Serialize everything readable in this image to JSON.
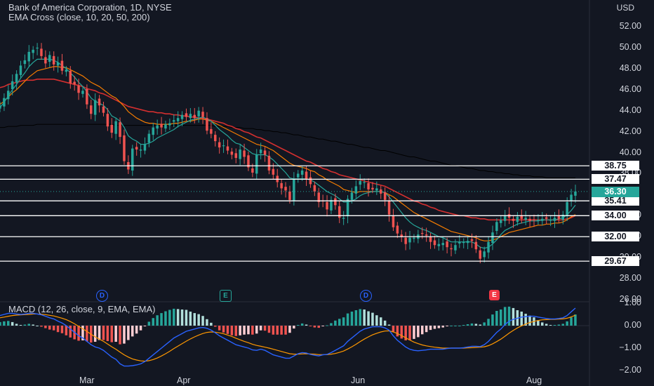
{
  "header": {
    "title": "Bank of America Corporation, 1D, NYSE",
    "indicator_ema": "EMA Cross (close, 10, 20, 50, 200)",
    "indicator_macd": "MACD (12, 26, close, 9, EMA, EMA)"
  },
  "axis": {
    "currency": "USD",
    "price_ticks": [
      "52.00",
      "50.00",
      "48.00",
      "46.00",
      "44.00",
      "42.00",
      "40.00",
      "38.00",
      "34.00",
      "32.00",
      "30.00",
      "28.00",
      "26.00"
    ],
    "macd_ticks": [
      "1.00",
      "0.00",
      "−1.00",
      "−2.00"
    ],
    "dates": [
      "Mar",
      "Apr",
      "Jun",
      "Aug"
    ]
  },
  "levels": [
    "38.75",
    "37.47",
    "35.41",
    "34.00",
    "32.00",
    "29.67"
  ],
  "last_price": "36.30",
  "events": [
    {
      "label": "D",
      "kind": "dividend"
    },
    {
      "label": "E",
      "kind": "earnings-green"
    },
    {
      "label": "D",
      "kind": "dividend"
    },
    {
      "label": "E",
      "kind": "earnings-red"
    }
  ],
  "colors": {
    "background": "#131722",
    "up": "#26a69a",
    "down": "#ef5350",
    "ema10": "#26a69a",
    "ema20": "#f57c00",
    "ema50": "#d32f2f",
    "ema200": "#000000",
    "macd": "#2962ff",
    "signal": "#ff9800"
  },
  "chart_data": {
    "type": "candlestick",
    "price_range": [
      26,
      53
    ],
    "close": [
      44.5,
      45.2,
      45.9,
      46.8,
      47.5,
      48.3,
      48.8,
      49.6,
      49.8,
      50.0,
      49.2,
      48.5,
      49.3,
      48.4,
      48.6,
      47.8,
      47.9,
      46.6,
      46.5,
      45.7,
      45.9,
      44.6,
      43.7,
      45.0,
      44.5,
      43.8,
      42.5,
      41.9,
      43.0,
      41.5,
      39.2,
      38.4,
      40.4,
      40.3,
      40.3,
      40.8,
      41.8,
      42.4,
      42.6,
      42.4,
      42.7,
      42.8,
      43.1,
      43.3,
      43.6,
      43.4,
      43.7,
      43.3,
      44.0,
      43.4,
      42.1,
      41.8,
      41.1,
      40.5,
      40.7,
      40.2,
      39.8,
      39.5,
      40.3,
      39.6,
      38.6,
      38.1,
      39.8,
      40.3,
      39.8,
      38.3,
      37.9,
      37.2,
      36.6,
      36.4,
      35.5,
      37.5,
      38.0,
      38.3,
      37.5,
      37.0,
      36.3,
      35.3,
      35.4,
      34.6,
      35.5,
      35.0,
      33.8,
      33.8,
      35.6,
      36.2,
      36.8,
      37.3,
      37.2,
      36.5,
      36.5,
      36.6,
      36.1,
      35.5,
      34.1,
      32.9,
      32.3,
      32.0,
      31.3,
      31.9,
      31.9,
      32.2,
      32.3,
      32.1,
      31.5,
      31.2,
      31.3,
      31.4,
      31.0,
      30.8,
      31.2,
      31.5,
      31.5,
      31.6,
      31.6,
      30.8,
      29.9,
      30.6,
      31.5,
      32.4,
      33.4,
      33.6,
      34.0,
      33.8,
      33.5,
      33.9,
      33.7,
      33.8,
      33.5,
      33.6,
      33.6,
      33.7,
      33.7,
      33.6,
      33.8,
      33.7,
      34.1,
      35.3,
      36.0,
      36.3
    ],
    "ema10": [
      44.3,
      44.8,
      45.4,
      46.0,
      46.5,
      47.1,
      47.6,
      48.2,
      48.6,
      48.9,
      48.9,
      48.9,
      48.9,
      48.8,
      48.6,
      48.3,
      48.0,
      47.6,
      47.2,
      46.7,
      46.3,
      45.8,
      45.2,
      44.9,
      44.7,
      44.5,
      44.1,
      43.5,
      43.3,
      43.0,
      42.4,
      41.6,
      41.3,
      41.1,
      40.8,
      40.8,
      40.9,
      41.1,
      41.4,
      41.6,
      41.8,
      42.0,
      42.2,
      42.5,
      42.7,
      42.9,
      43.1,
      43.2,
      43.3,
      43.4,
      43.2,
      43.0,
      42.6,
      42.2,
      41.9,
      41.6,
      41.2,
      40.9,
      40.8,
      40.5,
      40.2,
      39.9,
      39.8,
      39.8,
      39.8,
      39.6,
      39.3,
      38.9,
      38.5,
      38.1,
      37.6,
      37.5,
      37.5,
      37.5,
      37.5,
      37.4,
      37.2,
      36.9,
      36.6,
      36.3,
      36.1,
      35.9,
      35.6,
      35.3,
      35.3,
      35.4,
      35.6,
      35.9,
      36.1,
      36.2,
      36.3,
      36.3,
      36.3,
      36.2,
      35.8,
      35.3,
      34.8,
      34.3,
      33.8,
      33.4,
      33.1,
      32.9,
      32.7,
      32.6,
      32.4,
      32.2,
      32.0,
      31.9,
      31.7,
      31.5,
      31.5,
      31.5,
      31.5,
      31.5,
      31.5,
      31.3,
      31.0,
      30.9,
      31.0,
      31.3,
      31.7,
      32.2,
      32.6,
      32.8,
      33.0,
      33.2,
      33.3,
      33.4,
      33.5,
      33.5,
      33.5,
      33.6,
      33.6,
      33.6,
      33.6,
      33.7,
      33.8,
      34.1,
      34.5,
      35.0
    ],
    "ema20": [
      44.6,
      44.9,
      45.3,
      45.7,
      46.0,
      46.4,
      46.8,
      47.2,
      47.5,
      47.8,
      47.9,
      48.0,
      48.1,
      48.2,
      48.2,
      48.1,
      48.1,
      47.9,
      47.7,
      47.5,
      47.3,
      47.0,
      46.7,
      46.5,
      46.3,
      46.0,
      45.7,
      45.4,
      45.2,
      44.8,
      44.4,
      43.9,
      43.6,
      43.3,
      43.1,
      42.9,
      42.8,
      42.8,
      42.7,
      42.7,
      42.7,
      42.7,
      42.8,
      42.8,
      42.9,
      43.0,
      43.0,
      43.1,
      43.2,
      43.2,
      43.1,
      43.0,
      42.8,
      42.6,
      42.4,
      42.2,
      42.0,
      41.8,
      41.6,
      41.4,
      41.2,
      41.0,
      40.8,
      40.7,
      40.6,
      40.4,
      40.2,
      39.9,
      39.6,
      39.3,
      39.0,
      38.8,
      38.7,
      38.6,
      38.5,
      38.3,
      38.2,
      37.9,
      37.7,
      37.4,
      37.2,
      37.0,
      36.8,
      36.5,
      36.4,
      36.3,
      36.2,
      36.3,
      36.3,
      36.3,
      36.3,
      36.3,
      36.3,
      36.2,
      36.0,
      35.8,
      35.5,
      35.2,
      34.9,
      34.6,
      34.3,
      34.1,
      33.9,
      33.7,
      33.5,
      33.3,
      33.1,
      32.9,
      32.7,
      32.5,
      32.4,
      32.3,
      32.2,
      32.1,
      32.0,
      31.9,
      31.7,
      31.6,
      31.6,
      31.7,
      31.8,
      32.0,
      32.2,
      32.4,
      32.5,
      32.6,
      32.7,
      32.8,
      32.9,
      33.0,
      33.1,
      33.1,
      33.2,
      33.2,
      33.3,
      33.3,
      33.4,
      33.6,
      33.9,
      34.1
    ],
    "ema50": [
      46.2,
      46.3,
      46.5,
      46.6,
      46.7,
      46.8,
      46.9,
      46.9,
      46.9,
      47.0,
      47.0,
      47.0,
      47.0,
      47.0,
      46.9,
      46.8,
      46.7,
      46.6,
      46.5,
      46.4,
      46.3,
      46.1,
      46.0,
      45.9,
      45.7,
      45.6,
      45.4,
      45.2,
      45.0,
      44.8,
      44.6,
      44.4,
      44.3,
      44.2,
      44.1,
      44.0,
      43.9,
      43.9,
      43.8,
      43.8,
      43.7,
      43.7,
      43.6,
      43.6,
      43.5,
      43.5,
      43.4,
      43.4,
      43.3,
      43.3,
      43.2,
      43.1,
      43.0,
      42.9,
      42.8,
      42.6,
      42.5,
      42.3,
      42.2,
      42.0,
      41.9,
      41.7,
      41.5,
      41.4,
      41.2,
      41.0,
      40.8,
      40.6,
      40.4,
      40.2,
      40.0,
      39.8,
      39.6,
      39.4,
      39.2,
      39.1,
      38.9,
      38.7,
      38.5,
      38.4,
      38.2,
      38.1,
      37.9,
      37.8,
      37.7,
      37.6,
      37.5,
      37.4,
      37.3,
      37.2,
      37.1,
      37.0,
      36.9,
      36.8,
      36.6,
      36.4,
      36.2,
      36.0,
      35.8,
      35.6,
      35.4,
      35.3,
      35.1,
      35.0,
      34.8,
      34.7,
      34.5,
      34.4,
      34.3,
      34.2,
      34.1,
      34.0,
      34.0,
      33.9,
      33.8,
      33.8,
      33.7,
      33.7,
      33.6,
      33.6,
      33.6,
      33.6,
      33.6,
      33.6,
      33.6,
      33.6,
      33.6,
      33.6,
      33.6,
      33.6,
      33.6,
      33.6,
      33.6,
      33.6,
      33.6,
      33.6,
      33.6,
      33.7,
      33.8,
      34.0
    ],
    "ema200": [
      42.4,
      42.4,
      42.5,
      42.5,
      42.5,
      42.6,
      42.6,
      42.6,
      42.6,
      42.7,
      42.7,
      42.7,
      42.7,
      42.7,
      42.7,
      42.7,
      42.7,
      42.7,
      42.7,
      42.7,
      42.7,
      42.7,
      42.7,
      42.7,
      42.7,
      42.7,
      42.7,
      42.7,
      42.6,
      42.6,
      42.6,
      42.6,
      42.6,
      42.6,
      42.6,
      42.6,
      42.6,
      42.6,
      42.6,
      42.6,
      42.6,
      42.6,
      42.6,
      42.6,
      42.6,
      42.6,
      42.6,
      42.6,
      42.6,
      42.6,
      42.6,
      42.6,
      42.5,
      42.5,
      42.5,
      42.5,
      42.4,
      42.4,
      42.4,
      42.3,
      42.3,
      42.3,
      42.2,
      42.2,
      42.1,
      42.1,
      42.0,
      42.0,
      41.9,
      41.9,
      41.8,
      41.7,
      41.7,
      41.6,
      41.5,
      41.5,
      41.4,
      41.3,
      41.3,
      41.2,
      41.1,
      41.1,
      41.0,
      40.9,
      40.8,
      40.8,
      40.7,
      40.6,
      40.5,
      40.5,
      40.4,
      40.3,
      40.2,
      40.2,
      40.1,
      40.0,
      39.9,
      39.8,
      39.7,
      39.6,
      39.6,
      39.5,
      39.4,
      39.3,
      39.2,
      39.2,
      39.1,
      39.0,
      38.9,
      38.8,
      38.8,
      38.7,
      38.6,
      38.5,
      38.5,
      38.4,
      38.3,
      38.3,
      38.2,
      38.2,
      38.1,
      38.1,
      38.0,
      38.0,
      37.9,
      37.9,
      37.8,
      37.8,
      37.8,
      37.7,
      37.7,
      37.7,
      37.6,
      37.6,
      37.6,
      37.6,
      37.6,
      37.6,
      37.6,
      37.6
    ],
    "macd_range": [
      -2.1,
      1.1
    ],
    "macd": [
      0.45,
      0.5,
      0.55,
      0.55,
      0.52,
      0.5,
      0.52,
      0.55,
      0.55,
      0.52,
      0.48,
      0.42,
      0.35,
      0.3,
      0.2,
      0.12,
      0.0,
      -0.15,
      -0.3,
      -0.45,
      -0.55,
      -0.7,
      -0.85,
      -0.95,
      -1.0,
      -1.1,
      -1.25,
      -1.4,
      -1.5,
      -1.7,
      -1.8,
      -1.8,
      -1.78,
      -1.75,
      -1.7,
      -1.6,
      -1.45,
      -1.3,
      -1.15,
      -1.0,
      -0.85,
      -0.7,
      -0.55,
      -0.45,
      -0.35,
      -0.25,
      -0.2,
      -0.15,
      -0.1,
      -0.08,
      -0.12,
      -0.2,
      -0.32,
      -0.45,
      -0.55,
      -0.65,
      -0.75,
      -0.85,
      -0.9,
      -0.95,
      -1.0,
      -1.08,
      -1.1,
      -1.05,
      -1.1,
      -1.2,
      -1.3,
      -1.35,
      -1.4,
      -1.45,
      -1.45,
      -1.35,
      -1.25,
      -1.2,
      -1.22,
      -1.28,
      -1.32,
      -1.35,
      -1.3,
      -1.28,
      -1.2,
      -1.1,
      -1.0,
      -0.9,
      -0.7,
      -0.55,
      -0.4,
      -0.25,
      -0.15,
      -0.1,
      -0.05,
      -0.05,
      -0.05,
      -0.1,
      -0.2,
      -0.45,
      -0.65,
      -0.8,
      -0.95,
      -1.05,
      -1.1,
      -1.12,
      -1.1,
      -1.08,
      -1.05,
      -1.05,
      -1.05,
      -1.05,
      -1.02,
      -1.0,
      -1.0,
      -1.0,
      -0.98,
      -0.95,
      -0.92,
      -0.92,
      -0.93,
      -0.85,
      -0.7,
      -0.5,
      -0.3,
      -0.15,
      0.05,
      0.2,
      0.28,
      0.33,
      0.38,
      0.4,
      0.42,
      0.42,
      0.38,
      0.35,
      0.32,
      0.3,
      0.3,
      0.32,
      0.35,
      0.45,
      0.62,
      0.78
    ],
    "signal": [
      0.35,
      0.38,
      0.42,
      0.45,
      0.47,
      0.48,
      0.49,
      0.5,
      0.52,
      0.52,
      0.51,
      0.49,
      0.46,
      0.43,
      0.38,
      0.33,
      0.27,
      0.18,
      0.08,
      -0.03,
      -0.14,
      -0.26,
      -0.38,
      -0.5,
      -0.6,
      -0.7,
      -0.82,
      -0.94,
      -1.05,
      -1.18,
      -1.3,
      -1.4,
      -1.48,
      -1.53,
      -1.57,
      -1.58,
      -1.56,
      -1.51,
      -1.44,
      -1.35,
      -1.25,
      -1.14,
      -1.02,
      -0.91,
      -0.8,
      -0.69,
      -0.59,
      -0.5,
      -0.42,
      -0.35,
      -0.3,
      -0.28,
      -0.29,
      -0.32,
      -0.36,
      -0.42,
      -0.48,
      -0.56,
      -0.63,
      -0.7,
      -0.76,
      -0.83,
      -0.88,
      -0.92,
      -0.96,
      -1.0,
      -1.05,
      -1.1,
      -1.15,
      -1.2,
      -1.25,
      -1.27,
      -1.27,
      -1.26,
      -1.25,
      -1.26,
      -1.27,
      -1.29,
      -1.29,
      -1.29,
      -1.27,
      -1.24,
      -1.19,
      -1.13,
      -1.04,
      -0.94,
      -0.83,
      -0.71,
      -0.6,
      -0.5,
      -0.41,
      -0.34,
      -0.28,
      -0.24,
      -0.23,
      -0.28,
      -0.35,
      -0.44,
      -0.54,
      -0.64,
      -0.73,
      -0.8,
      -0.86,
      -0.9,
      -0.93,
      -0.96,
      -0.98,
      -1.0,
      -1.0,
      -1.0,
      -1.0,
      -1.0,
      -1.0,
      -0.99,
      -0.98,
      -0.97,
      -0.96,
      -0.94,
      -0.89,
      -0.81,
      -0.71,
      -0.6,
      -0.47,
      -0.33,
      -0.21,
      -0.1,
      -0.01,
      0.07,
      0.14,
      0.19,
      0.23,
      0.26,
      0.27,
      0.28,
      0.28,
      0.29,
      0.3,
      0.33,
      0.39,
      0.47
    ]
  }
}
